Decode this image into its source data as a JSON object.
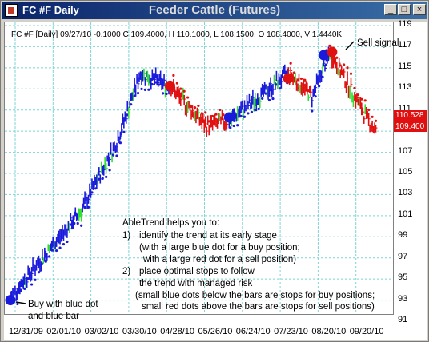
{
  "window": {
    "symbol_label": "FC #F Daily",
    "title": "Feeder Cattle (Futures)",
    "controls": [
      "_",
      "□",
      "×"
    ]
  },
  "info_line": "FC #F [Daily] 09/27/10 -0.1000 C 109.4000, H 110.1000, L 108.1500, O 108.4000, V 1.4440K",
  "price_tags": [
    "110.528",
    "109.400"
  ],
  "annotations": {
    "sell_signal": "Sell signal",
    "buy_line1": "Buy with blue dot",
    "buy_line2": "and blue bar",
    "helps_title": "AbleTrend helps you to:",
    "item1_num": "1)",
    "item1_text": "identify the trend at its early stage",
    "item1_sub1": "(with a large blue dot for a buy position;",
    "item1_sub2": "with a large red dot for a sell position)",
    "item2_num": "2)",
    "item2_text": "place optimal stops to follow",
    "item2_sub1": "the trend with managed risk",
    "item2_sub2": "(small blue dots below the bars are stops for buy positions;",
    "item2_sub3": "small red dots above the bars are stops for sell positions)"
  },
  "colors": {
    "up_trend": "#1a1adc",
    "down_trend": "#e01010",
    "neutral": "#33dd33",
    "grid": "#7fd4d4",
    "title_bar": "#0a246a"
  },
  "chart_data": {
    "type": "bar",
    "style": "OHLC price bars colored by trend",
    "x_tick_labels": [
      "12/31/09",
      "02/01/10",
      "03/02/10",
      "03/30/10",
      "04/28/10",
      "05/26/10",
      "06/24/10",
      "07/23/10",
      "08/20/10",
      "09/20/10"
    ],
    "y_tick_labels": [
      "91",
      "93",
      "95",
      "97",
      "99",
      "101",
      "103",
      "105",
      "107",
      "109",
      "111",
      "113",
      "115",
      "117",
      "119"
    ],
    "ylim": [
      91,
      119
    ],
    "grid": true,
    "last_price": 109.4,
    "marker_price": 110.528,
    "segments": [
      {
        "trend": "up",
        "from": [
          0,
          93.3
        ],
        "to": [
          60,
          101.5
        ]
      },
      {
        "trend": "up",
        "from": [
          60,
          101.5
        ],
        "to": [
          90,
          108
        ]
      },
      {
        "trend": "up",
        "from": [
          90,
          108
        ],
        "to": [
          110,
          114.5
        ]
      },
      {
        "trend": "up",
        "from": [
          110,
          114.5
        ],
        "to": [
          135,
          113.2
        ]
      },
      {
        "trend": "down",
        "from": [
          135,
          113.2
        ],
        "to": [
          165,
          109.5
        ]
      },
      {
        "trend": "down",
        "from": [
          165,
          109.5
        ],
        "to": [
          185,
          110
        ]
      },
      {
        "trend": "up",
        "from": [
          185,
          110
        ],
        "to": [
          235,
          114.5
        ]
      },
      {
        "trend": "down",
        "from": [
          235,
          114.5
        ],
        "to": [
          255,
          112.3
        ]
      },
      {
        "trend": "up",
        "from": [
          255,
          112.3
        ],
        "to": [
          270,
          116.5
        ]
      },
      {
        "trend": "down",
        "from": [
          270,
          116.5
        ],
        "to": [
          300,
          110.5
        ]
      },
      {
        "trend": "down",
        "from": [
          300,
          110.5
        ],
        "to": [
          310,
          108.8
        ]
      }
    ],
    "signals": [
      {
        "type": "buy",
        "index": 0,
        "price": 93
      },
      {
        "type": "sell",
        "index": 135,
        "price": 113.3
      },
      {
        "type": "buy",
        "index": 185,
        "price": 110.3
      },
      {
        "type": "sell",
        "index": 235,
        "price": 114
      },
      {
        "type": "buy",
        "index": 265,
        "price": 116.2
      },
      {
        "type": "sell",
        "index": 272,
        "price": 116.5
      }
    ]
  }
}
